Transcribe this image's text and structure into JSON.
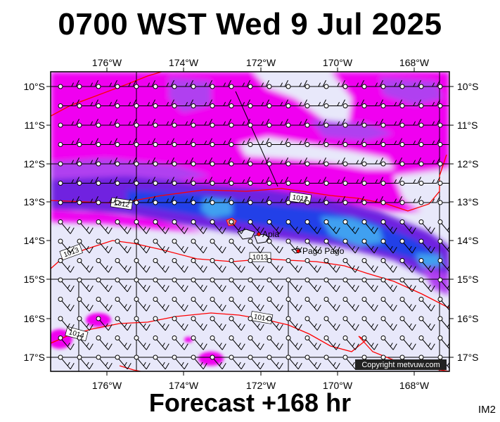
{
  "title": "0700 WST Wed 9 Jul 2025",
  "footer": "Forecast +168 hr",
  "corner_label": "IM2",
  "copyright": "Copyright metvuw.com",
  "map": {
    "lon_labels": [
      "176°W",
      "174°W",
      "172°W",
      "170°W",
      "168°W"
    ],
    "lat_labels": [
      "10°S",
      "11°S",
      "12°S",
      "13°S",
      "14°S",
      "15°S",
      "16°S",
      "17°S"
    ],
    "places": [
      {
        "name": "Apia"
      },
      {
        "name": "Pago Pago"
      }
    ],
    "isobars": [
      {
        "label": "1012"
      },
      {
        "label": "1012"
      },
      {
        "label": "1013"
      },
      {
        "label": "1013"
      },
      {
        "label": "1014"
      },
      {
        "label": "1014"
      }
    ]
  },
  "colors": {
    "background": "#e8e8fa",
    "magenta": "#f000f0",
    "violet": "#b040f0",
    "purple": "#7020e0",
    "blue": "#2040e8",
    "lightblue": "#40a0f0",
    "isobar": "#ff0000"
  }
}
